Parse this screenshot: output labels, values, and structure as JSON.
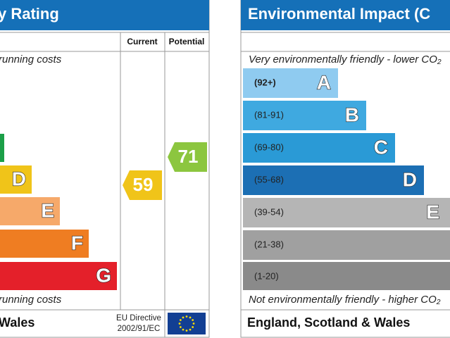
{
  "left_panel": {
    "title": "y Rating",
    "columns": [
      "Current",
      "Potential"
    ],
    "top_note": "running costs",
    "bands": [
      "D",
      "E",
      "F",
      "G"
    ],
    "current": 59,
    "potential": 71,
    "bottom_note": "running costs",
    "footer": "Wales",
    "directive": [
      "EU Directive",
      "2002/91/EC"
    ]
  },
  "right_panel": {
    "title": "Environmental Impact (C",
    "top_note": "Very environmentally friendly - lower CO₂",
    "bands": [
      {
        "range": "(92+)",
        "letter": "A"
      },
      {
        "range": "(81-91)",
        "letter": "B"
      },
      {
        "range": "(69-80)",
        "letter": "C"
      },
      {
        "range": "(55-68)",
        "letter": "D"
      },
      {
        "range": "(39-54)",
        "letter": "E"
      },
      {
        "range": "(21-38)"
      },
      {
        "range": "(1-20)"
      }
    ],
    "bottom_note": "Not environmentally friendly - higher CO₂",
    "footer": "England, Scotland & Wales"
  }
}
